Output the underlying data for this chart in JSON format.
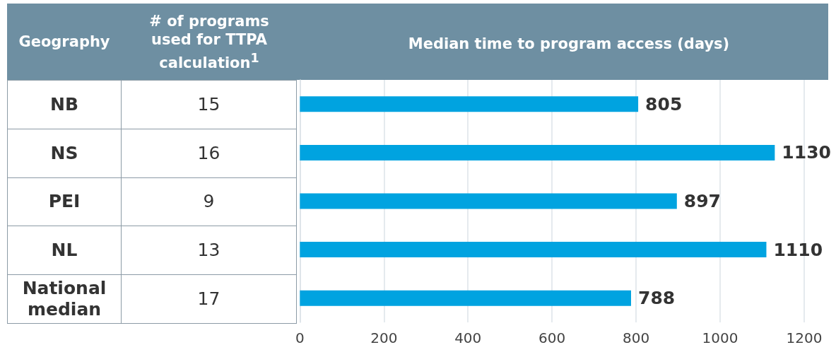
{
  "chart_data": [
    {
      "type": "other",
      "ylabel": "Geography",
      "title": "# of programs used for TTPA calculation$^{1}$",
      "categories": [
        "NB",
        "NS",
        "PEI",
        "NL",
        "National median"
      ],
      "values": [
        15,
        16,
        9,
        13,
        17
      ],
      "data_labels": true
    },
    {
      "type": "bar",
      "orientation": "horizontal",
      "title": "Median time to program access (days)",
      "categories": [
        null,
        null,
        null,
        null,
        null
      ],
      "values": [
        805,
        1130,
        897,
        1110,
        788
      ],
      "color": "#00a3e0",
      "xlim": [
        0,
        1200
      ],
      "xticks": [
        0,
        200,
        400,
        600,
        800,
        1000,
        1200
      ],
      "grid": "x",
      "data_labels": true,
      "tick_labels": "x"
    }
  ]
}
